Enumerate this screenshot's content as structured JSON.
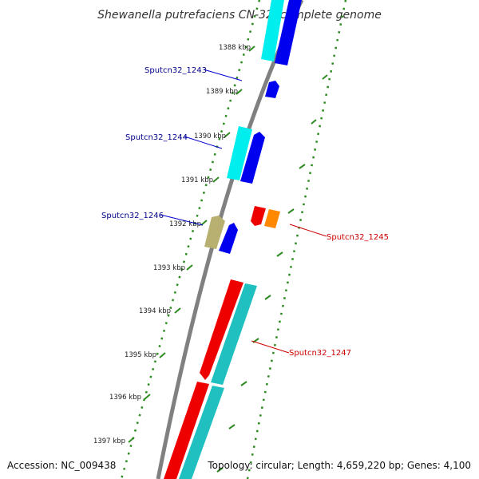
{
  "title": "Shewanella putrefaciens CN-32, complete genome",
  "footer": {
    "accession": "Accession: NC_009438",
    "summary": "Topology: circular; Length: 4,659,220 bp; Genes: 4,100"
  },
  "colors": {
    "backbone": "#808080",
    "tick": "#2e8b22",
    "forward_cds": "#0000ee",
    "forward_rna": "#00eeee",
    "reverse_cds": "#ee0000",
    "reverse_rna": "#20c0c0",
    "label_forward": "#00008b",
    "label_reverse": "#cc0000"
  },
  "ticks": [
    {
      "label": "1388 kbp"
    },
    {
      "label": "1389 kbp"
    },
    {
      "label": "1390 kbp"
    },
    {
      "label": "1391 kbp"
    },
    {
      "label": "1392 kbp"
    },
    {
      "label": "1393 kbp"
    },
    {
      "label": "1394 kbp"
    },
    {
      "label": "1395 kbp"
    },
    {
      "label": "1396 kbp"
    },
    {
      "label": "1397 kbp"
    }
  ],
  "genes": [
    {
      "name": "Sputcn32_1243",
      "strand": "forward"
    },
    {
      "name": "Sputcn32_1244",
      "strand": "forward"
    },
    {
      "name": "Sputcn32_1246",
      "strand": "forward"
    },
    {
      "name": "Sputcn32_1245",
      "strand": "reverse"
    },
    {
      "name": "Sputcn32_1247",
      "strand": "reverse"
    }
  ]
}
